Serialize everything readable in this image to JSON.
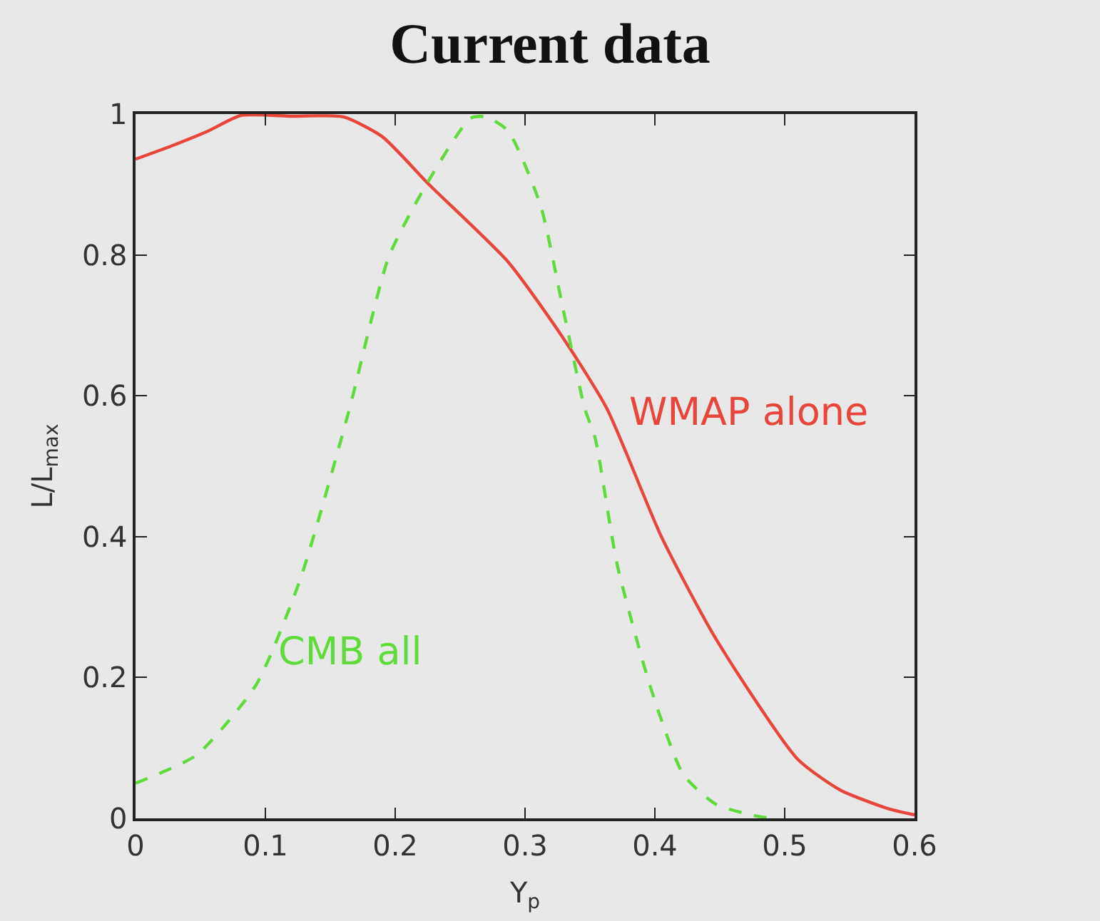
{
  "chart_data": {
    "type": "line",
    "title": "Current data",
    "xlabel": "Y$_{p}$",
    "ylabel": "L/L$_{max}$",
    "xlim": [
      0,
      0.6
    ],
    "xticks": [
      0,
      0.1,
      0.2,
      0.3,
      0.4,
      0.5,
      0.6
    ],
    "ylim": [
      0,
      1
    ],
    "yticks": [
      0,
      0.2,
      0.4,
      0.6,
      0.8,
      1
    ],
    "grid": false,
    "legend": false,
    "series": [
      {
        "name": "WMAP alone",
        "color": "#e8453c",
        "line_style": "solid",
        "x": [
          0,
          0.028,
          0.056,
          0.081,
          0.12,
          0.16,
          0.19,
          0.226,
          0.287,
          0.329,
          0.363,
          0.405,
          0.447,
          0.51,
          0.543,
          0.581,
          0.6
        ],
        "values": [
          0.936,
          0.955,
          0.976,
          0.998,
          0.997,
          0.996,
          0.968,
          0.9,
          0.79,
          0.683,
          0.582,
          0.4,
          0.255,
          0.084,
          0.04,
          0.013,
          0.005
        ]
      },
      {
        "name": "CMB all",
        "color": "#5fdc3c",
        "line_style": "dashed",
        "x": [
          0,
          0.047,
          0.093,
          0.127,
          0.164,
          0.195,
          0.224,
          0.258,
          0.27,
          0.287,
          0.312,
          0.329,
          0.346,
          0.354,
          0.371,
          0.397,
          0.422,
          0.447,
          0.476,
          0.49
        ],
        "values": [
          0.05,
          0.09,
          0.19,
          0.34,
          0.576,
          0.797,
          0.9,
          0.994,
          0.996,
          0.976,
          0.87,
          0.726,
          0.582,
          0.54,
          0.36,
          0.184,
          0.062,
          0.02,
          0.004,
          0
        ]
      }
    ]
  }
}
